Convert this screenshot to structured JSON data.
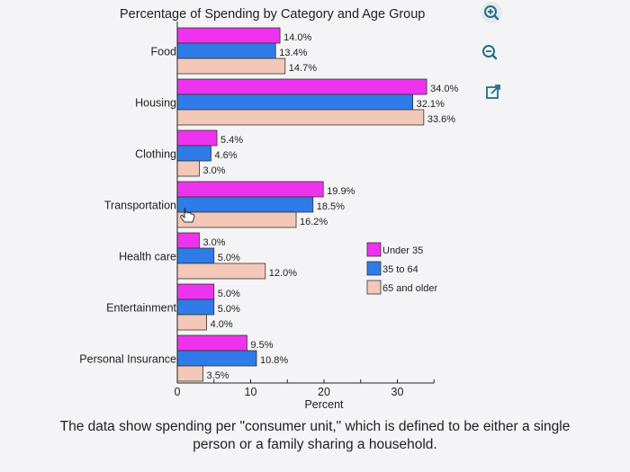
{
  "chart_data": {
    "type": "bar",
    "orientation": "horizontal",
    "title": "Percentage of Spending by Category and Age Group",
    "xlabel": "Percent",
    "ylabel": "",
    "xlim": [
      0,
      35
    ],
    "xticks": [
      "0",
      "10",
      "20",
      "30"
    ],
    "categories": [
      "Food",
      "Housing",
      "Clothing",
      "Transportation",
      "Health care",
      "Entertainment",
      "Personal Insurance"
    ],
    "series": [
      {
        "name": "Under 35",
        "color": "#ee33ee",
        "values": [
          14.0,
          34.0,
          5.4,
          19.9,
          3.0,
          5.0,
          9.5
        ]
      },
      {
        "name": "35 to 64",
        "color": "#2f7be8",
        "values": [
          13.4,
          32.1,
          4.6,
          18.5,
          5.0,
          5.0,
          10.8
        ]
      },
      {
        "name": "65 and older",
        "color": "#f3c8b8",
        "values": [
          14.7,
          33.6,
          3.0,
          16.2,
          12.0,
          4.0,
          3.5
        ]
      }
    ],
    "data_labels": [
      [
        "14.0%",
        "13.4%",
        "14.7%"
      ],
      [
        "34.0%",
        "32.1%",
        "33.6%"
      ],
      [
        "5.4%",
        "4.6%",
        "3.0%"
      ],
      [
        "19.9%",
        "18.5%",
        "16.2%"
      ],
      [
        "3.0%",
        "5.0%",
        "12.0%"
      ],
      [
        "5.0%",
        "5.0%",
        "4.0%"
      ],
      [
        "9.5%",
        "10.8%",
        "3.5%"
      ]
    ],
    "legend_position": "right",
    "grid": false
  },
  "caption": {
    "line1": "The data show spending per \"consumer unit,\" which is defined to be either a single",
    "line2": "person or a family sharing a household."
  },
  "icons": {
    "zoom_in": "zoom-in-icon",
    "zoom_out": "zoom-out-icon",
    "popout": "external-link-icon",
    "cursor": "hand-pointer-icon"
  }
}
